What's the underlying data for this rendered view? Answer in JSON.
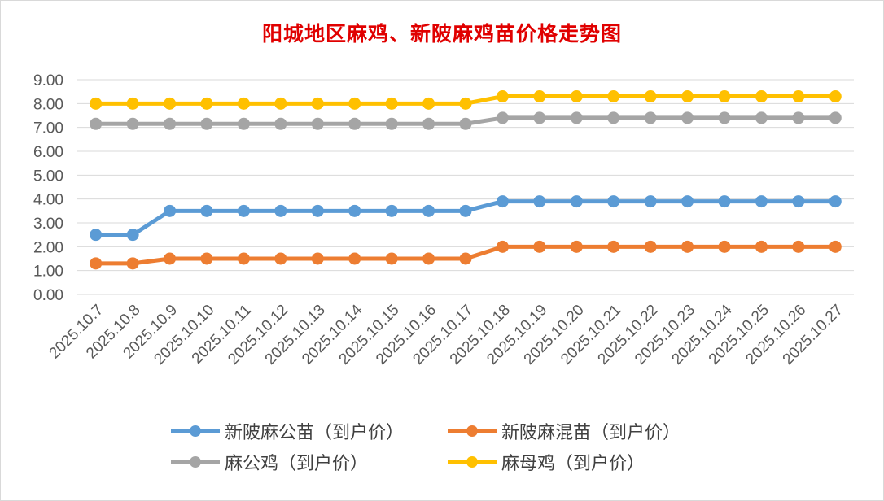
{
  "chart_data": {
    "type": "line",
    "title": "阳城地区麻鸡、新陂麻鸡苗价格走势图",
    "xlabel": "",
    "ylabel": "",
    "ylim": [
      0,
      9
    ],
    "yticks": [
      "0.00",
      "1.00",
      "2.00",
      "3.00",
      "4.00",
      "5.00",
      "6.00",
      "7.00",
      "8.00",
      "9.00"
    ],
    "grid": true,
    "legend_position": "bottom",
    "categories": [
      "2025.10.7",
      "2025.10.8",
      "2025.10.9",
      "2025.10.10",
      "2025.10.11",
      "2025.10.12",
      "2025.10.13",
      "2025.10.14",
      "2025.10.15",
      "2025.10.16",
      "2025.10.17",
      "2025.10.18",
      "2025.10.19",
      "2025.10.20",
      "2025.10.21",
      "2025.10.22",
      "2025.10.23",
      "2025.10.24",
      "2025.10.25",
      "2025.10.26",
      "2025.10.27"
    ],
    "series": [
      {
        "name": "新陂麻公苗（到户价）",
        "color": "#5b9bd5",
        "values": [
          2.5,
          2.5,
          3.5,
          3.5,
          3.5,
          3.5,
          3.5,
          3.5,
          3.5,
          3.5,
          3.5,
          3.9,
          3.9,
          3.9,
          3.9,
          3.9,
          3.9,
          3.9,
          3.9,
          3.9,
          3.9
        ]
      },
      {
        "name": "新陂麻混苗（到户价）",
        "color": "#ed7d31",
        "values": [
          1.3,
          1.3,
          1.5,
          1.5,
          1.5,
          1.5,
          1.5,
          1.5,
          1.5,
          1.5,
          1.5,
          2.0,
          2.0,
          2.0,
          2.0,
          2.0,
          2.0,
          2.0,
          2.0,
          2.0,
          2.0
        ]
      },
      {
        "name": "麻公鸡（到户价）",
        "color": "#a5a5a5",
        "values": [
          7.15,
          7.15,
          7.15,
          7.15,
          7.15,
          7.15,
          7.15,
          7.15,
          7.15,
          7.15,
          7.15,
          7.4,
          7.4,
          7.4,
          7.4,
          7.4,
          7.4,
          7.4,
          7.4,
          7.4,
          7.4
        ]
      },
      {
        "name": "麻母鸡（到户价）",
        "color": "#ffc000",
        "values": [
          8.0,
          8.0,
          8.0,
          8.0,
          8.0,
          8.0,
          8.0,
          8.0,
          8.0,
          8.0,
          8.0,
          8.3,
          8.3,
          8.3,
          8.3,
          8.3,
          8.3,
          8.3,
          8.3,
          8.3,
          8.3
        ]
      }
    ]
  }
}
